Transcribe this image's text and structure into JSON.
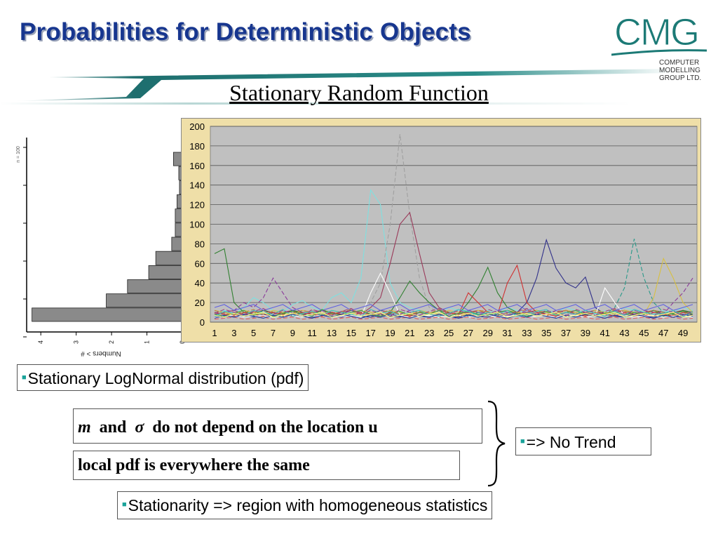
{
  "slide": {
    "title": "Probabilities for Deterministic Objects",
    "subtitle": "Stationary Random Function"
  },
  "logo": {
    "wordmark": "CMG",
    "company_lines": [
      "COMPUTER",
      "MODELLING",
      "GROUP LTD."
    ],
    "color": "#1c7a76"
  },
  "histogram": {
    "sample_label": "n = 100",
    "axis_label": "Numbers > #",
    "ticks": [
      "4",
      "3",
      "2",
      "1",
      "0"
    ],
    "bar_values": [
      0.25,
      0.1,
      0.08,
      0.15,
      0.2,
      0.2,
      0.3,
      0.75,
      0.95,
      1.55,
      2.15,
      4.25
    ]
  },
  "boxes": {
    "pdf_label": "Stationary LogNormal distribution (pdf)",
    "m_symbol": "m",
    "and_word": "and",
    "sigma_symbol": "σ",
    "location_text": "do not depend on the location u",
    "local_pdf": "local pdf is everywhere the same",
    "no_trend": "=> No Trend",
    "stationarity": "Stationarity => region with homogeneous statistics"
  },
  "chart_data": {
    "type": "line",
    "x": [
      1,
      2,
      3,
      4,
      5,
      6,
      7,
      8,
      9,
      10,
      11,
      12,
      13,
      14,
      15,
      16,
      17,
      18,
      19,
      20,
      21,
      22,
      23,
      24,
      25,
      26,
      27,
      28,
      29,
      30,
      31,
      32,
      33,
      34,
      35,
      36,
      37,
      38,
      39,
      40,
      41,
      42,
      43,
      44,
      45,
      46,
      47,
      48,
      49,
      50
    ],
    "x_tick_labels": [
      "1",
      "3",
      "5",
      "7",
      "9",
      "11",
      "13",
      "15",
      "17",
      "19",
      "21",
      "23",
      "25",
      "27",
      "29",
      "31",
      "33",
      "35",
      "37",
      "39",
      "41",
      "43",
      "45",
      "47",
      "49"
    ],
    "ylim": [
      0,
      200
    ],
    "y_ticks": [
      "0",
      "20",
      "40",
      "60",
      "80",
      "100",
      "120",
      "140",
      "160",
      "180",
      "200"
    ],
    "grid": "horizontal",
    "legend": "none",
    "colors": {
      "plot_bg": "#c0c0c0",
      "frame_bg": "#efdfa8"
    },
    "series": [
      {
        "color": "#7fe0e0",
        "values": [
          10,
          12,
          8,
          15,
          25,
          20,
          12,
          10,
          18,
          22,
          15,
          12,
          25,
          30,
          20,
          45,
          135,
          120,
          40,
          20,
          15,
          12,
          10,
          8,
          15,
          12,
          10,
          8,
          12,
          10,
          15,
          12,
          10,
          8,
          12,
          10,
          15,
          12,
          10,
          8,
          12,
          10,
          15,
          12,
          10,
          8,
          12,
          10,
          15,
          12
        ]
      },
      {
        "color": "#a0a0a0",
        "values": [
          5,
          8,
          10,
          6,
          12,
          8,
          10,
          6,
          8,
          10,
          12,
          8,
          6,
          10,
          8,
          12,
          20,
          40,
          100,
          192,
          110,
          45,
          15,
          10,
          8,
          6,
          10,
          8,
          6,
          10,
          8,
          6,
          10,
          8,
          6,
          10,
          8,
          6,
          10,
          8,
          6,
          10,
          8,
          6,
          10,
          8,
          6,
          10,
          8,
          6
        ]
      },
      {
        "color": "#9a3a5a",
        "values": [
          8,
          10,
          12,
          8,
          10,
          12,
          8,
          10,
          12,
          8,
          10,
          12,
          8,
          10,
          12,
          8,
          15,
          25,
          60,
          100,
          112,
          70,
          30,
          15,
          10,
          8,
          10,
          12,
          8,
          10,
          12,
          8,
          10,
          12,
          8,
          10,
          12,
          8,
          10,
          12,
          8,
          10,
          12,
          8,
          10,
          12,
          8,
          10,
          12,
          8
        ]
      },
      {
        "color": "#30308a",
        "values": [
          6,
          5,
          8,
          6,
          5,
          8,
          6,
          5,
          8,
          6,
          5,
          8,
          6,
          5,
          8,
          6,
          5,
          8,
          6,
          5,
          8,
          6,
          5,
          8,
          6,
          5,
          8,
          6,
          5,
          8,
          6,
          10,
          20,
          45,
          84,
          55,
          40,
          35,
          46,
          15,
          8,
          6,
          5,
          8,
          6,
          5,
          8,
          6,
          5,
          8
        ]
      },
      {
        "color": "#2a9a8a",
        "values": [
          10,
          8,
          6,
          10,
          8,
          6,
          10,
          8,
          6,
          10,
          8,
          6,
          10,
          8,
          6,
          10,
          8,
          6,
          10,
          8,
          6,
          10,
          8,
          6,
          10,
          8,
          6,
          10,
          8,
          6,
          10,
          8,
          6,
          10,
          8,
          6,
          10,
          8,
          6,
          10,
          8,
          15,
          35,
          85,
          45,
          20,
          10,
          8,
          6,
          10
        ]
      },
      {
        "color": "#308030",
        "values": [
          70,
          75,
          20,
          10,
          8,
          12,
          10,
          8,
          12,
          10,
          8,
          12,
          10,
          8,
          12,
          10,
          8,
          12,
          10,
          25,
          42,
          30,
          20,
          12,
          10,
          8,
          20,
          35,
          56,
          30,
          15,
          10,
          8,
          12,
          10,
          8,
          12,
          10,
          8,
          12,
          10,
          8,
          12,
          10,
          8,
          12,
          10,
          8,
          12,
          10
        ]
      },
      {
        "color": "#d8c040",
        "values": [
          12,
          10,
          8,
          12,
          10,
          8,
          12,
          10,
          8,
          12,
          10,
          8,
          12,
          10,
          8,
          12,
          10,
          8,
          12,
          10,
          8,
          12,
          10,
          8,
          12,
          10,
          8,
          12,
          10,
          8,
          12,
          10,
          8,
          12,
          10,
          8,
          12,
          10,
          8,
          12,
          10,
          8,
          12,
          10,
          8,
          25,
          65,
          45,
          20,
          10
        ]
      },
      {
        "color": "#8a3a9a",
        "values": [
          8,
          10,
          12,
          20,
          15,
          25,
          45,
          30,
          15,
          10,
          8,
          12,
          10,
          8,
          12,
          10,
          8,
          12,
          10,
          8,
          12,
          10,
          8,
          12,
          10,
          8,
          12,
          10,
          8,
          12,
          10,
          8,
          12,
          10,
          8,
          12,
          10,
          8,
          12,
          10,
          8,
          12,
          10,
          8,
          12,
          10,
          8,
          20,
          30,
          45
        ]
      },
      {
        "color": "#d03030",
        "values": [
          10,
          8,
          6,
          10,
          8,
          6,
          10,
          8,
          6,
          10,
          8,
          6,
          10,
          8,
          6,
          10,
          8,
          6,
          10,
          8,
          6,
          10,
          8,
          6,
          10,
          8,
          30,
          20,
          10,
          8,
          40,
          58,
          20,
          10,
          8,
          6,
          10,
          8,
          6,
          10,
          8,
          6,
          10,
          8,
          6,
          10,
          8,
          6,
          10,
          8
        ]
      },
      {
        "color": "#ffffff",
        "values": [
          5,
          6,
          7,
          5,
          6,
          7,
          5,
          6,
          7,
          5,
          6,
          7,
          5,
          6,
          7,
          5,
          30,
          50,
          30,
          7,
          5,
          6,
          7,
          5,
          6,
          7,
          5,
          6,
          7,
          5,
          6,
          7,
          5,
          6,
          7,
          5,
          6,
          7,
          5,
          6,
          35,
          20,
          7,
          5,
          6,
          7,
          5,
          6,
          7,
          5
        ]
      },
      {
        "color": "#e06060",
        "values": [
          3,
          4,
          5,
          3,
          4,
          5,
          3,
          4,
          5,
          3,
          4,
          5,
          3,
          4,
          5,
          3,
          4,
          5,
          3,
          4,
          5,
          3,
          4,
          5,
          3,
          4,
          5,
          3,
          4,
          5,
          3,
          4,
          5,
          3,
          4,
          5,
          3,
          4,
          5,
          3,
          4,
          5,
          3,
          4,
          5,
          3,
          4,
          5,
          3,
          4
        ]
      },
      {
        "color": "#6060e0",
        "values": [
          15,
          18,
          12,
          15,
          18,
          12,
          15,
          18,
          12,
          15,
          18,
          12,
          15,
          18,
          12,
          15,
          18,
          12,
          15,
          18,
          12,
          15,
          18,
          12,
          15,
          18,
          12,
          15,
          18,
          12,
          15,
          18,
          12,
          15,
          18,
          12,
          15,
          18,
          12,
          15,
          18,
          12,
          15,
          18,
          12,
          15,
          18,
          12,
          15,
          18
        ]
      },
      {
        "color": "#40a040",
        "values": [
          8,
          6,
          9,
          12,
          7,
          10,
          6,
          9,
          11,
          8,
          6,
          13,
          9,
          7,
          10,
          12,
          8,
          6,
          9,
          11,
          7,
          10,
          8,
          12,
          6,
          9,
          11,
          8,
          7,
          10,
          12,
          9,
          6,
          8,
          11,
          7,
          10,
          12,
          8,
          6,
          9,
          11,
          7,
          10,
          8,
          12,
          6,
          9,
          11,
          8
        ]
      },
      {
        "color": "#c08040",
        "values": [
          12,
          9,
          7,
          10,
          13,
          8,
          11,
          6,
          9,
          12,
          10,
          7,
          8,
          11,
          13,
          9,
          6,
          10,
          12,
          8,
          7,
          11,
          9,
          13,
          10,
          6,
          8,
          12,
          11,
          7,
          9,
          10,
          13,
          8,
          6,
          11,
          12,
          9,
          7,
          10,
          8,
          13,
          11,
          6,
          9,
          12,
          10,
          7,
          8,
          11
        ]
      },
      {
        "color": "#40c0c0",
        "values": [
          6,
          11,
          9,
          7,
          12,
          10,
          8,
          13,
          6,
          9,
          11,
          7,
          12,
          10,
          8,
          6,
          13,
          9,
          11,
          7,
          10,
          12,
          8,
          6,
          9,
          13,
          11,
          7,
          10,
          8,
          12,
          6,
          9,
          11,
          13,
          7,
          10,
          8,
          12,
          9,
          6,
          11,
          7,
          13,
          10,
          8,
          9,
          12,
          6,
          11
        ]
      },
      {
        "color": "#2040a0",
        "values": [
          4,
          7,
          5,
          8,
          6,
          4,
          7,
          5,
          8,
          6,
          4,
          7,
          5,
          8,
          6,
          4,
          7,
          5,
          8,
          6,
          4,
          7,
          5,
          8,
          6,
          4,
          7,
          5,
          8,
          6,
          4,
          7,
          5,
          8,
          6,
          4,
          7,
          5,
          8,
          6,
          4,
          7,
          5,
          8,
          6,
          4,
          7,
          5,
          8,
          6
        ]
      },
      {
        "color": "#a04080",
        "values": [
          9,
          13,
          10,
          7,
          11,
          14,
          8,
          12,
          9,
          6,
          13,
          10,
          7,
          11,
          14,
          8,
          12,
          9,
          6,
          13,
          10,
          7,
          11,
          14,
          8,
          12,
          9,
          6,
          13,
          10,
          7,
          11,
          14,
          8,
          12,
          9,
          6,
          13,
          10,
          7,
          11,
          14,
          8,
          12,
          9,
          6,
          13,
          10,
          7,
          11
        ]
      },
      {
        "color": "#ffff80",
        "values": [
          7,
          5,
          9,
          6,
          8,
          10,
          5,
          7,
          9,
          6,
          8,
          10,
          5,
          7,
          9,
          6,
          8,
          10,
          5,
          7,
          9,
          6,
          8,
          10,
          5,
          7,
          9,
          6,
          8,
          10,
          5,
          7,
          9,
          6,
          8,
          10,
          5,
          7,
          9,
          6,
          8,
          10,
          5,
          7,
          9,
          6,
          8,
          10,
          5,
          7
        ]
      }
    ]
  }
}
